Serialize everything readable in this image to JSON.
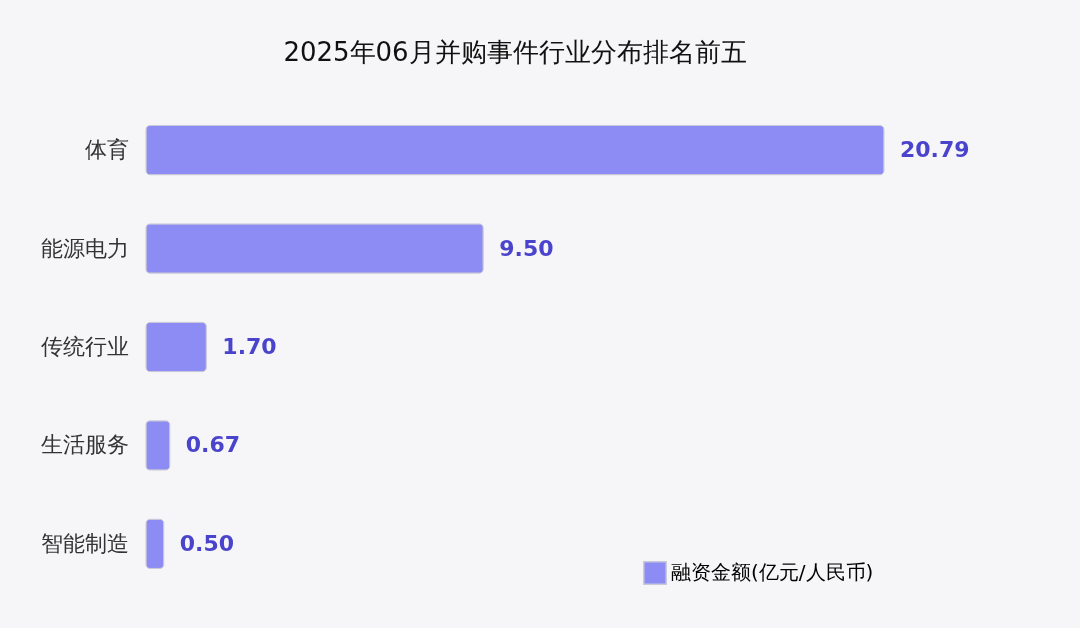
{
  "chart_data": {
    "type": "bar",
    "orientation": "horizontal",
    "title": "2025年06月并购事件行业分布排名前五",
    "categories": [
      "体育",
      "能源电力",
      "传统行业",
      "生活服务",
      "智能制造"
    ],
    "series": [
      {
        "name": "融资金额(亿元/人民币)",
        "color": "#8c8cf4",
        "values": [
          20.79,
          9.5,
          1.7,
          0.67,
          0.5
        ],
        "value_labels": [
          "20.79",
          "9.50",
          "1.70",
          "0.67",
          "0.50"
        ]
      }
    ],
    "data_labels": true,
    "legend": "bottom right",
    "grid": false
  }
}
